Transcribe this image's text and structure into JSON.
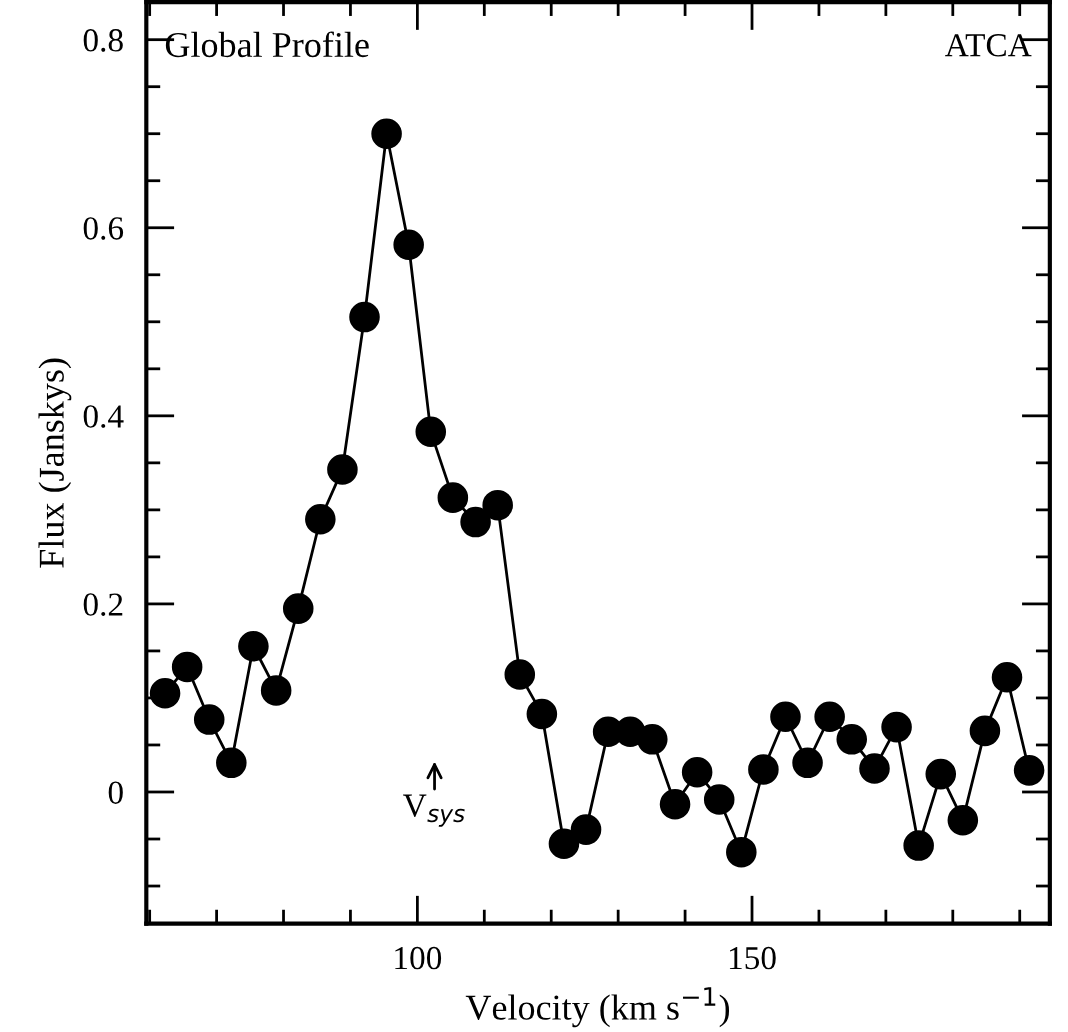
{
  "chart_data": {
    "type": "line",
    "title": "Global Profile",
    "xlabel": "Velocity (km s$^{−1}$)",
    "ylabel": "Flux (Janskys)",
    "annotations": [
      "ATCA",
      "V$_{sys}$"
    ],
    "x": [
      62.3,
      65.6,
      68.9,
      72.2,
      75.5,
      78.9,
      82.2,
      85.5,
      88.8,
      92.1,
      95.4,
      98.7,
      102.0,
      105.3,
      108.7,
      112.0,
      115.3,
      118.6,
      121.9,
      125.2,
      128.5,
      131.8,
      135.1,
      138.5,
      141.8,
      145.1,
      148.4,
      151.7,
      155.0,
      158.3,
      161.6,
      164.9,
      168.3,
      171.6,
      174.9,
      178.2,
      181.5,
      184.8,
      188.1,
      191.4
    ],
    "series": [
      {
        "color": "#000000",
        "values": [
          0.105,
          0.133,
          0.077,
          0.031,
          0.155,
          0.108,
          0.195,
          0.29,
          0.343,
          0.505,
          0.7,
          0.582,
          0.383,
          0.313,
          0.287,
          0.305,
          0.125,
          0.083,
          -0.055,
          -0.04,
          0.064,
          0.064,
          0.056,
          -0.013,
          0.021,
          -0.008,
          -0.064,
          0.024,
          0.08,
          0.031,
          0.08,
          0.056,
          0.025,
          0.069,
          -0.057,
          0.019,
          -0.03,
          0.065,
          0.122,
          0.023
        ]
      }
    ],
    "marker": "circle",
    "line_style": "solid",
    "grid": false,
    "legend": false,
    "xlim": [
      59.5,
      194.5
    ],
    "xticks": [
      {
        "value": 60,
        "label": null
      },
      {
        "value": 70,
        "label": null
      },
      {
        "value": 80,
        "label": null
      },
      {
        "value": 90,
        "label": null
      },
      100,
      {
        "value": 110,
        "label": null
      },
      {
        "value": 120,
        "label": null
      },
      {
        "value": 130,
        "label": null
      },
      {
        "value": 140,
        "label": null
      },
      150,
      {
        "value": 160,
        "label": null
      },
      {
        "value": 170,
        "label": null
      },
      {
        "value": 180,
        "label": null
      },
      {
        "value": 190,
        "label": null
      }
    ],
    "ylim": [
      -0.14,
      0.84
    ],
    "yticks": [
      {
        "value": -0.1,
        "label": null
      },
      {
        "value": -0.05,
        "label": null
      },
      0,
      {
        "value": 0.05,
        "label": null
      },
      {
        "value": 0.1,
        "label": null
      },
      {
        "value": 0.15,
        "label": null
      },
      0.2,
      {
        "value": 0.25,
        "label": null
      },
      {
        "value": 0.3,
        "label": null
      },
      {
        "value": 0.35,
        "label": null
      },
      0.4,
      {
        "value": 0.45,
        "label": null
      },
      {
        "value": 0.5,
        "label": null
      },
      {
        "value": 0.55,
        "label": null
      },
      0.6,
      {
        "value": 0.65,
        "label": null
      },
      {
        "value": 0.7,
        "label": null
      },
      {
        "value": 0.75,
        "label": null
      },
      0.8
    ]
  }
}
